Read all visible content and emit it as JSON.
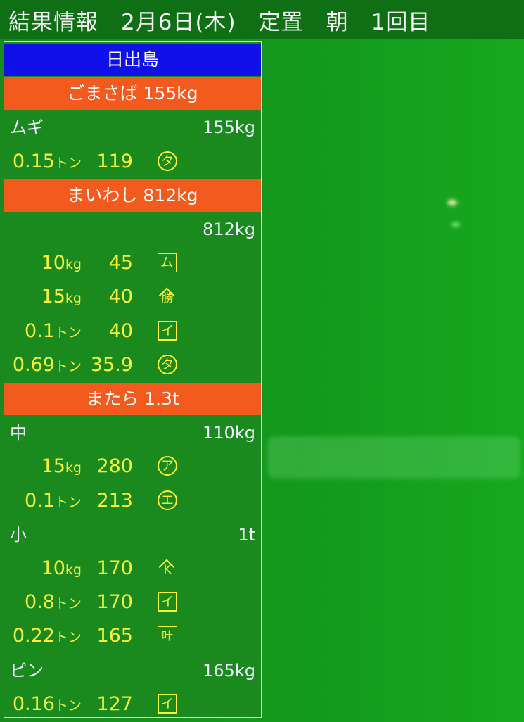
{
  "header": {
    "title": "結果情報　2月6日(木)　定置　朝　1回目"
  },
  "colors": {
    "location_bg": "#1010e8",
    "fish_bg": "#f25a1e",
    "screen_bg": "#1a8a1e",
    "item_text": "#f5f03a"
  },
  "rows": [
    {
      "type": "location",
      "text": "日出島"
    },
    {
      "type": "fish",
      "text": "ごまさば 155kg"
    },
    {
      "type": "category",
      "label": "ムギ",
      "total": "155kg"
    },
    {
      "type": "item",
      "weight": "0.15",
      "unit": "トン",
      "price": "119",
      "mark": "タ",
      "mark_style": "circle"
    },
    {
      "type": "fish",
      "text": "まいわし 812kg"
    },
    {
      "type": "category",
      "label": "",
      "total": "812kg"
    },
    {
      "type": "item",
      "weight": "10",
      "unit": "kg",
      "price": "45",
      "mark": "ム",
      "mark_style": "bracket"
    },
    {
      "type": "item",
      "weight": "15",
      "unit": "kg",
      "price": "40",
      "mark": "勝",
      "mark_style": "roof"
    },
    {
      "type": "item",
      "weight": "0.1",
      "unit": "トン",
      "price": "40",
      "mark": "イ",
      "mark_style": "box"
    },
    {
      "type": "item",
      "weight": "0.69",
      "unit": "トン",
      "price": "35.9",
      "mark": "タ",
      "mark_style": "circle"
    },
    {
      "type": "fish",
      "text": "またら 1.3t"
    },
    {
      "type": "category",
      "label": "中",
      "total": "110kg"
    },
    {
      "type": "item",
      "weight": "15",
      "unit": "kg",
      "price": "280",
      "mark": "ア",
      "mark_style": "circle"
    },
    {
      "type": "item",
      "weight": "0.1",
      "unit": "トン",
      "price": "213",
      "mark": "エ",
      "mark_style": "circle"
    },
    {
      "type": "category",
      "label": "小",
      "total": "1t"
    },
    {
      "type": "item",
      "weight": "10",
      "unit": "kg",
      "price": "170",
      "mark": "K",
      "mark_style": "roof"
    },
    {
      "type": "item",
      "weight": "0.8",
      "unit": "トン",
      "price": "170",
      "mark": "イ",
      "mark_style": "box"
    },
    {
      "type": "item",
      "weight": "0.22",
      "unit": "トン",
      "price": "165",
      "mark": "叶",
      "mark_style": "topline"
    },
    {
      "type": "category",
      "label": "ピン",
      "total": "165kg"
    },
    {
      "type": "item",
      "weight": "0.16",
      "unit": "トン",
      "price": "127",
      "mark": "イ",
      "mark_style": "box"
    }
  ]
}
